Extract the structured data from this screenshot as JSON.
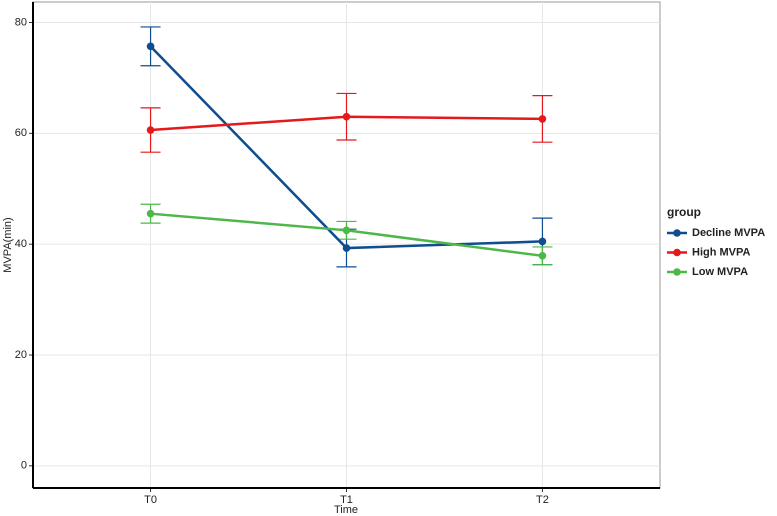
{
  "chart_data": {
    "type": "line",
    "x_label": "Time",
    "y_label": "MVPA(min)",
    "categories": [
      "T0",
      "T1",
      "T2"
    ],
    "series": [
      {
        "name": "Decline MVPA",
        "color": "#0e4d8f",
        "values": [
          75.7,
          39.3,
          40.5
        ],
        "errors": [
          3.5,
          3.4,
          4.2
        ]
      },
      {
        "name": "High MVPA",
        "color": "#e3191c",
        "values": [
          60.6,
          63.0,
          62.6
        ],
        "errors": [
          4.0,
          4.2,
          4.2
        ]
      },
      {
        "name": "Low MVPA",
        "color": "#4db848",
        "values": [
          45.5,
          42.5,
          37.9
        ],
        "errors": [
          1.7,
          1.6,
          1.6
        ]
      }
    ],
    "legend_title": "group",
    "legend": "right",
    "ylim": [
      -4,
      83.7
    ],
    "yticks": [
      0,
      20,
      40,
      60,
      80
    ],
    "grid": true
  }
}
